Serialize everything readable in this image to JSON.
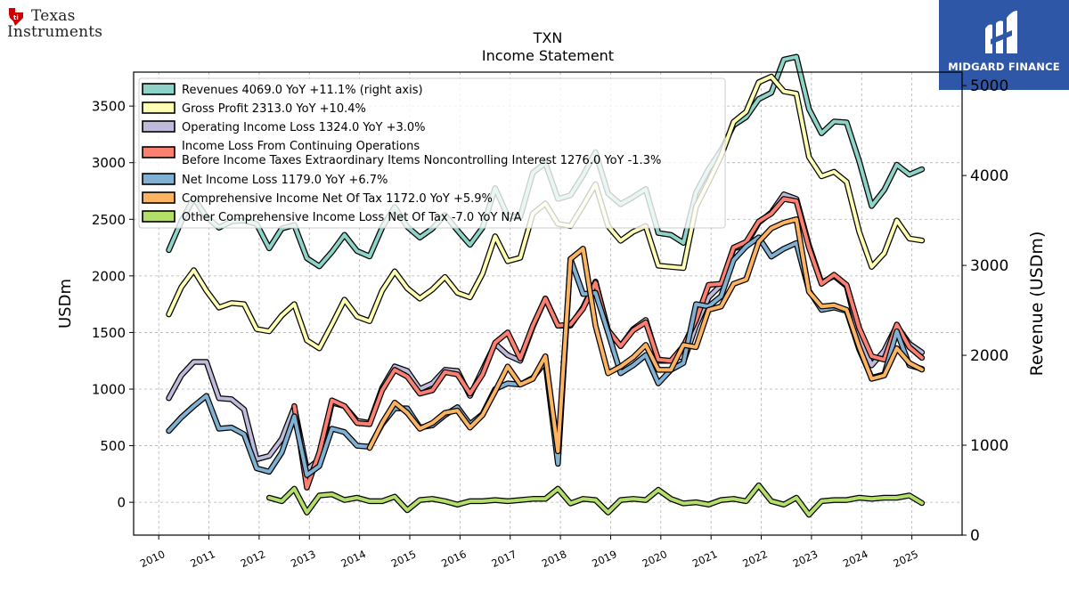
{
  "logos": {
    "company_line1": "Texas",
    "company_line2": "Instruments",
    "brand": "MIDGARD FINANCE"
  },
  "colors": {
    "revenues": "#8dd3c7",
    "gross_profit": "#ffffb3",
    "operating_income": "#bebada",
    "pretax_income": "#fb8072",
    "net_income": "#80b1d3",
    "comprehensive_income": "#fdb462",
    "other_comprehensive": "#b3de69",
    "brand_blue": "#2f57a8"
  },
  "chart_data": {
    "type": "line",
    "title": "TXN",
    "subtitle": "Income Statement",
    "ylabel": "USDm",
    "ylabel_right": "Revenue (USDm)",
    "ylim": [
      -290,
      3800
    ],
    "ylim_right": [
      0,
      5150
    ],
    "yticks": [
      0,
      500,
      1000,
      1500,
      2000,
      2500,
      3000,
      3500
    ],
    "yticks_right": [
      0,
      1000,
      2000,
      3000,
      4000,
      5000
    ],
    "xlim": [
      2009.5,
      2026.0
    ],
    "xticks": [
      2010,
      2011,
      2012,
      2013,
      2014,
      2015,
      2016,
      2017,
      2018,
      2019,
      2020,
      2021,
      2022,
      2023,
      2024,
      2025
    ],
    "grid": true,
    "legend_position": "top-left",
    "series": [
      {
        "name": "Revenues",
        "legend": "Revenues  4069.0 YoY +11.1% (right axis)",
        "color_key": "revenues",
        "axis": "right",
        "x": [
          2010.2,
          2010.45,
          2010.7,
          2010.95,
          2011.2,
          2011.45,
          2011.7,
          2011.95,
          2012.2,
          2012.45,
          2012.7,
          2012.95,
          2013.2,
          2013.45,
          2013.7,
          2013.95,
          2014.2,
          2014.45,
          2014.7,
          2014.95,
          2015.2,
          2015.45,
          2015.7,
          2015.95,
          2016.2,
          2016.45,
          2016.7,
          2016.95,
          2017.2,
          2017.45,
          2017.7,
          2017.95,
          2018.2,
          2018.45,
          2018.7,
          2018.95,
          2019.2,
          2019.45,
          2019.7,
          2019.95,
          2020.2,
          2020.45,
          2020.7,
          2020.95,
          2021.2,
          2021.45,
          2021.7,
          2021.95,
          2022.2,
          2022.45,
          2022.7,
          2022.95,
          2023.2,
          2023.45,
          2023.7,
          2023.95,
          2024.2,
          2024.45,
          2024.7,
          2024.95,
          2025.2
        ],
        "values": [
          3170,
          3490,
          3750,
          3540,
          3420,
          3490,
          3500,
          3460,
          3190,
          3410,
          3450,
          3080,
          2990,
          3150,
          3340,
          3160,
          3100,
          3420,
          3650,
          3430,
          3310,
          3410,
          3560,
          3390,
          3230,
          3420,
          3860,
          3550,
          3540,
          4030,
          4140,
          3740,
          3780,
          4000,
          4260,
          3800,
          3680,
          3760,
          3850,
          3360,
          3340,
          3250,
          3810,
          4070,
          4280,
          4560,
          4650,
          4850,
          4920,
          5290,
          5320,
          4740,
          4470,
          4600,
          4590,
          4160,
          3660,
          3840,
          4120,
          4010,
          4069
        ]
      },
      {
        "name": "Gross Profit",
        "legend": "Gross Profit  2313.0 YoY +10.4%",
        "color_key": "gross_profit",
        "axis": "left",
        "x": [
          2010.2,
          2010.45,
          2010.7,
          2010.95,
          2011.2,
          2011.45,
          2011.7,
          2011.95,
          2012.2,
          2012.45,
          2012.7,
          2012.95,
          2013.2,
          2013.45,
          2013.7,
          2013.95,
          2014.2,
          2014.45,
          2014.7,
          2014.95,
          2015.2,
          2015.45,
          2015.7,
          2015.95,
          2016.2,
          2016.45,
          2016.7,
          2016.95,
          2017.2,
          2017.45,
          2017.7,
          2017.95,
          2018.2,
          2018.45,
          2018.7,
          2018.95,
          2019.2,
          2019.45,
          2019.7,
          2019.95,
          2020.2,
          2020.45,
          2020.7,
          2020.95,
          2021.2,
          2021.45,
          2021.7,
          2021.95,
          2022.2,
          2022.45,
          2022.7,
          2022.95,
          2023.2,
          2023.45,
          2023.7,
          2023.95,
          2024.2,
          2024.45,
          2024.7,
          2024.95,
          2025.2
        ],
        "values": [
          1660,
          1900,
          2050,
          1870,
          1720,
          1760,
          1750,
          1530,
          1510,
          1650,
          1750,
          1430,
          1360,
          1570,
          1790,
          1640,
          1600,
          1870,
          2040,
          1890,
          1800,
          1880,
          1990,
          1850,
          1810,
          2020,
          2350,
          2130,
          2160,
          2550,
          2640,
          2460,
          2440,
          2620,
          2810,
          2440,
          2310,
          2390,
          2440,
          2090,
          2080,
          2070,
          2610,
          2830,
          3060,
          3360,
          3450,
          3710,
          3760,
          3630,
          3610,
          3050,
          2880,
          2920,
          2830,
          2390,
          2080,
          2200,
          2490,
          2330,
          2313
        ]
      },
      {
        "name": "Operating Income Loss",
        "legend": "Operating Income Loss  1324.0 YoY +3.0%",
        "color_key": "operating_income",
        "axis": "left",
        "x": [
          2010.2,
          2010.45,
          2010.7,
          2010.95,
          2011.2,
          2011.45,
          2011.7,
          2011.95,
          2012.2,
          2012.45,
          2012.7,
          2012.95,
          2013.2,
          2013.45,
          2013.7,
          2013.95,
          2014.2,
          2014.45,
          2014.7,
          2014.95,
          2015.2,
          2015.45,
          2015.7,
          2015.95,
          2016.2,
          2016.45,
          2016.7,
          2016.95,
          2017.2,
          2017.45,
          2017.7,
          2017.95,
          2018.2,
          2018.45,
          2018.7,
          2018.95,
          2019.2,
          2019.45,
          2019.7,
          2019.95,
          2020.2,
          2020.45,
          2020.7,
          2020.95,
          2021.2,
          2021.45,
          2021.7,
          2021.95,
          2022.2,
          2022.45,
          2022.7,
          2022.95,
          2023.2,
          2023.45,
          2023.7,
          2023.95,
          2024.2,
          2024.45,
          2024.7,
          2024.95,
          2025.2
        ],
        "values": [
          920,
          1120,
          1240,
          1240,
          920,
          910,
          820,
          380,
          410,
          560,
          840,
          290,
          380,
          880,
          850,
          720,
          700,
          1010,
          1200,
          1160,
          1000,
          1050,
          1170,
          1160,
          940,
          1170,
          1400,
          1300,
          1250,
          1550,
          1800,
          1560,
          1560,
          1720,
          1950,
          1520,
          1380,
          1530,
          1610,
          1250,
          1250,
          1240,
          1560,
          1810,
          1920,
          2240,
          2280,
          2470,
          2560,
          2720,
          2680,
          2270,
          1940,
          2000,
          1910,
          1460,
          1210,
          1340,
          1560,
          1400,
          1324
        ]
      },
      {
        "name": "Income Loss From Continuing Operations Before Income Taxes Extraordinary Items Noncontrolling Interest",
        "legend_line1": "Income Loss From Continuing Operations",
        "legend_line2": "Before Income Taxes Extraordinary Items Noncontrolling Interest  1276.0 YoY -1.3%",
        "color_key": "pretax_income",
        "axis": "left",
        "x": [
          2012.7,
          2012.95,
          2013.2,
          2013.45,
          2013.7,
          2013.95,
          2014.2,
          2014.45,
          2014.7,
          2014.95,
          2015.2,
          2015.45,
          2015.7,
          2015.95,
          2016.2,
          2016.45,
          2016.7,
          2016.95,
          2017.2,
          2017.45,
          2017.7,
          2017.95,
          2018.2,
          2018.45,
          2018.7,
          2018.95,
          2019.2,
          2019.45,
          2019.7,
          2019.95,
          2020.2,
          2020.45,
          2020.7,
          2020.95,
          2021.2,
          2021.45,
          2021.7,
          2021.95,
          2022.2,
          2022.45,
          2022.7,
          2022.95,
          2023.2,
          2023.45,
          2023.7,
          2023.95,
          2024.2,
          2024.45,
          2024.7,
          2024.95,
          2025.2
        ],
        "values": [
          850,
          130,
          440,
          900,
          850,
          700,
          690,
          990,
          1170,
          1110,
          960,
          990,
          1150,
          1130,
          960,
          1130,
          1410,
          1500,
          1270,
          1560,
          1800,
          1560,
          1570,
          1710,
          1940,
          1520,
          1380,
          1520,
          1590,
          1260,
          1250,
          1380,
          1610,
          1920,
          1930,
          2250,
          2300,
          2480,
          2550,
          2680,
          2660,
          2250,
          1930,
          2010,
          1920,
          1540,
          1290,
          1260,
          1570,
          1370,
          1276
        ]
      },
      {
        "name": "Net Income Loss",
        "legend": "Net Income Loss  1179.0 YoY +6.7%",
        "color_key": "net_income",
        "axis": "left",
        "x": [
          2010.2,
          2010.45,
          2010.7,
          2010.95,
          2011.2,
          2011.45,
          2011.7,
          2011.95,
          2012.2,
          2012.45,
          2012.7,
          2012.95,
          2013.2,
          2013.45,
          2013.7,
          2013.95,
          2014.2,
          2014.45,
          2014.7,
          2014.95,
          2015.2,
          2015.45,
          2015.7,
          2015.95,
          2016.2,
          2016.45,
          2016.7,
          2016.95,
          2017.2,
          2017.45,
          2017.7,
          2017.95,
          2018.2,
          2018.45,
          2018.7,
          2018.95,
          2019.2,
          2019.45,
          2019.7,
          2019.95,
          2020.2,
          2020.45,
          2020.7,
          2020.95,
          2021.2,
          2021.45,
          2021.7,
          2021.95,
          2022.2,
          2022.45,
          2022.7,
          2022.95,
          2023.2,
          2023.45,
          2023.7,
          2023.95,
          2024.2,
          2024.45,
          2024.7,
          2024.95,
          2025.2
        ],
        "values": [
          630,
          750,
          850,
          940,
          650,
          660,
          600,
          300,
          270,
          440,
          760,
          240,
          320,
          650,
          620,
          500,
          490,
          690,
          830,
          830,
          660,
          680,
          770,
          840,
          690,
          780,
          1000,
          1050,
          1040,
          1100,
          1240,
          340,
          2150,
          1840,
          1850,
          1500,
          1140,
          1210,
          1300,
          1050,
          1170,
          1230,
          1750,
          1730,
          1820,
          2140,
          2260,
          2340,
          2170,
          2240,
          2290,
          1870,
          1700,
          1720,
          1690,
          1350,
          1100,
          1130,
          1510,
          1210,
          1179
        ]
      },
      {
        "name": "Comprehensive Income Net Of Tax",
        "legend": "Comprehensive Income Net Of Tax  1172.0 YoY +5.9%",
        "color_key": "comprehensive_income",
        "axis": "left",
        "x": [
          2014.2,
          2014.45,
          2014.7,
          2014.95,
          2015.2,
          2015.45,
          2015.7,
          2015.95,
          2016.2,
          2016.45,
          2016.7,
          2016.95,
          2017.2,
          2017.45,
          2017.7,
          2017.95,
          2018.2,
          2018.45,
          2018.7,
          2018.95,
          2019.2,
          2019.45,
          2019.7,
          2019.95,
          2020.2,
          2020.45,
          2020.7,
          2020.95,
          2021.2,
          2021.45,
          2021.7,
          2021.95,
          2022.2,
          2022.45,
          2022.7,
          2022.95,
          2023.2,
          2023.45,
          2023.7,
          2023.95,
          2024.2,
          2024.45,
          2024.7,
          2024.95,
          2025.2
        ],
        "values": [
          480,
          700,
          880,
          790,
          650,
          700,
          790,
          810,
          660,
          770,
          980,
          1200,
          1040,
          1090,
          1290,
          450,
          2150,
          2240,
          1560,
          1140,
          1200,
          1280,
          1390,
          1170,
          1170,
          1390,
          1370,
          1700,
          1730,
          1930,
          1970,
          2300,
          2420,
          2470,
          2500,
          1860,
          1730,
          1740,
          1700,
          1370,
          1090,
          1120,
          1360,
          1230,
          1172
        ]
      },
      {
        "name": "Other Comprehensive Income Loss Net Of Tax",
        "legend": "Other Comprehensive Income Loss Net Of Tax  -7.0 YoY N/A",
        "color_key": "other_comprehensive",
        "axis": "left",
        "x": [
          2012.2,
          2012.45,
          2012.7,
          2012.95,
          2013.2,
          2013.45,
          2013.7,
          2013.95,
          2014.2,
          2014.45,
          2014.7,
          2014.95,
          2015.2,
          2015.45,
          2015.7,
          2015.95,
          2016.2,
          2016.45,
          2016.7,
          2016.95,
          2017.2,
          2017.45,
          2017.7,
          2017.95,
          2018.2,
          2018.45,
          2018.7,
          2018.95,
          2019.2,
          2019.45,
          2019.7,
          2019.95,
          2020.2,
          2020.45,
          2020.7,
          2020.95,
          2021.2,
          2021.45,
          2021.7,
          2021.95,
          2022.2,
          2022.45,
          2022.7,
          2022.95,
          2023.2,
          2023.45,
          2023.7,
          2023.95,
          2024.2,
          2024.45,
          2024.7,
          2024.95,
          2025.2
        ],
        "values": [
          40,
          10,
          120,
          -90,
          60,
          70,
          20,
          40,
          10,
          10,
          50,
          -70,
          20,
          30,
          10,
          -20,
          10,
          10,
          20,
          10,
          20,
          30,
          30,
          120,
          -10,
          30,
          20,
          -90,
          20,
          30,
          20,
          110,
          30,
          -10,
          0,
          -20,
          20,
          30,
          10,
          150,
          10,
          -20,
          40,
          -110,
          10,
          20,
          20,
          40,
          30,
          40,
          40,
          60,
          -7
        ]
      }
    ]
  }
}
